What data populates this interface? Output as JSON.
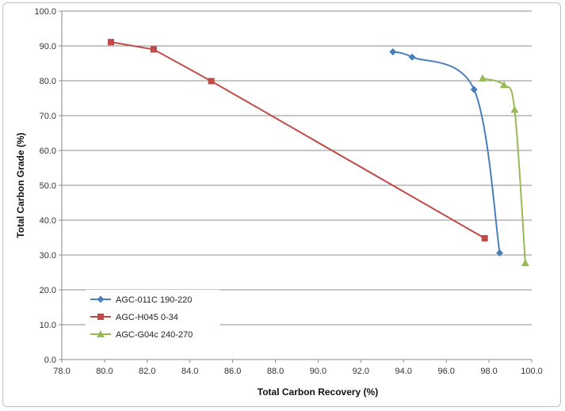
{
  "chart_data": {
    "type": "scatter",
    "xlabel": "Total Carbon Recovery (%)",
    "ylabel": "Total Carbon Grade (%)",
    "xlim": [
      78,
      100
    ],
    "ylim": [
      0,
      100
    ],
    "x_ticks": [
      "78.0",
      "80.0",
      "82.0",
      "84.0",
      "86.0",
      "88.0",
      "90.0",
      "92.0",
      "94.0",
      "96.0",
      "98.0",
      "100.0"
    ],
    "y_ticks": [
      "0.0",
      "10.0",
      "20.0",
      "30.0",
      "40.0",
      "50.0",
      "60.0",
      "70.0",
      "80.0",
      "90.0",
      "100.0"
    ],
    "grid": true,
    "legend_position": "bottom-left",
    "series": [
      {
        "name": "AGC-011C 190-220",
        "color": "#4a7ebb",
        "marker": "diamond",
        "points": [
          [
            93.5,
            88.3
          ],
          [
            94.4,
            86.8
          ],
          [
            97.3,
            77.5
          ],
          [
            98.5,
            30.6
          ]
        ]
      },
      {
        "name": "AGC-H045 0-34",
        "color": "#be4b48",
        "marker": "square",
        "points": [
          [
            80.3,
            91.1
          ],
          [
            82.3,
            89.0
          ],
          [
            85.0,
            79.9
          ],
          [
            97.8,
            34.8
          ]
        ]
      },
      {
        "name": "AGC-G04c 240-270",
        "color": "#98b954",
        "marker": "triangle",
        "points": [
          [
            97.7,
            80.7
          ],
          [
            98.7,
            78.8
          ],
          [
            99.2,
            71.7
          ],
          [
            99.7,
            27.7
          ]
        ]
      }
    ]
  }
}
